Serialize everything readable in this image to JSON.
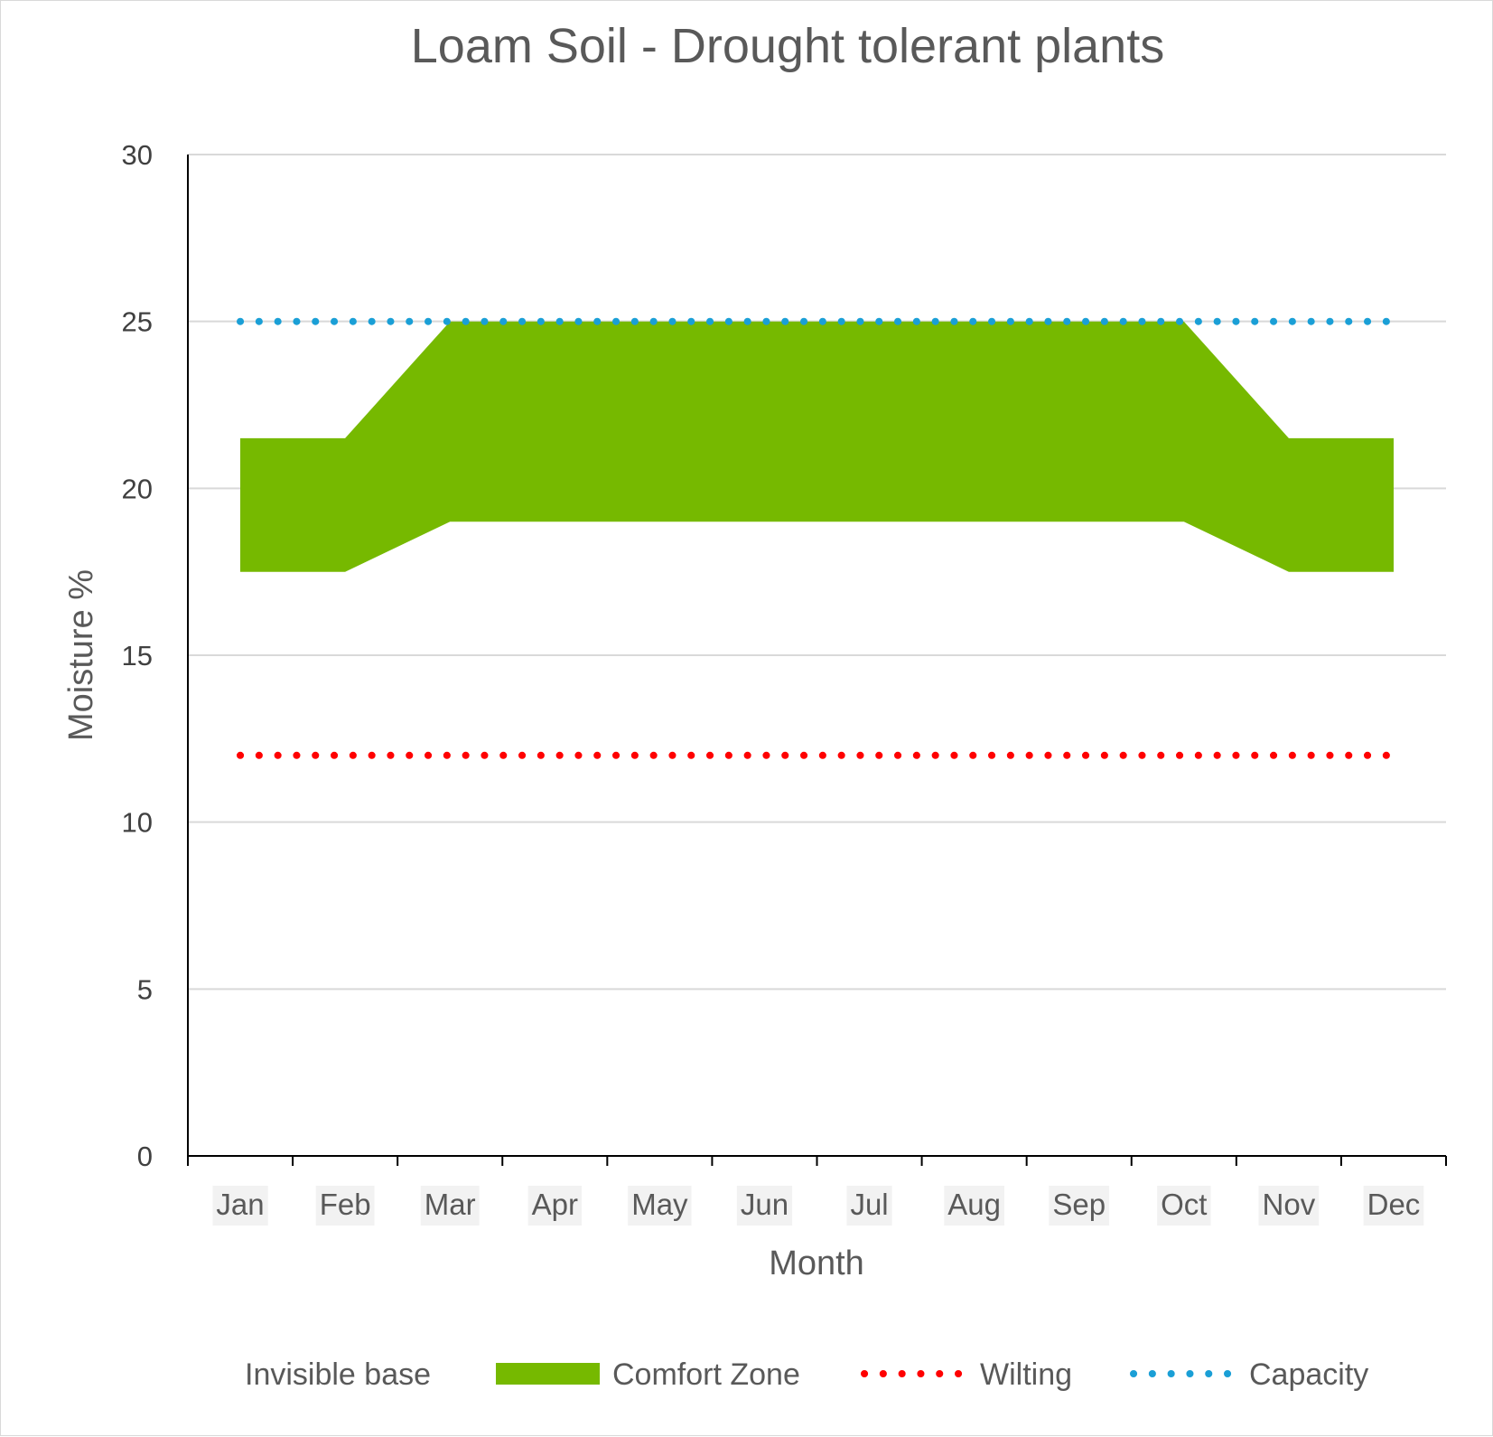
{
  "chart_data": {
    "type": "area",
    "title": "Loam Soil - Drought tolerant plants",
    "xlabel": "Month",
    "ylabel": "Moisture %",
    "categories": [
      "Jan",
      "Feb",
      "Mar",
      "Apr",
      "May",
      "Jun",
      "Jul",
      "Aug",
      "Sep",
      "Oct",
      "Nov",
      "Dec"
    ],
    "ylim": [
      0,
      30
    ],
    "yticks": [
      0,
      5,
      10,
      15,
      20,
      25,
      30
    ],
    "grid": true,
    "legend_position": "bottom",
    "series": [
      {
        "name": "Invisible base",
        "kind": "stacked-area-base",
        "color": "none",
        "values": [
          17.5,
          17.5,
          19,
          19,
          19,
          19,
          19,
          19,
          19,
          19,
          17.5,
          17.5
        ]
      },
      {
        "name": "Comfort Zone",
        "kind": "stacked-area",
        "color": "#76b900",
        "values": [
          4,
          4,
          6,
          6,
          6,
          6,
          6,
          6,
          6,
          6,
          4,
          4
        ]
      },
      {
        "name": "Wilting",
        "kind": "dotted-line",
        "color": "#ff0000",
        "values": [
          12,
          12,
          12,
          12,
          12,
          12,
          12,
          12,
          12,
          12,
          12,
          12
        ]
      },
      {
        "name": "Capacity",
        "kind": "dotted-line",
        "color": "#1a9fd6",
        "values": [
          25,
          25,
          25,
          25,
          25,
          25,
          25,
          25,
          25,
          25,
          25,
          25
        ]
      }
    ]
  }
}
